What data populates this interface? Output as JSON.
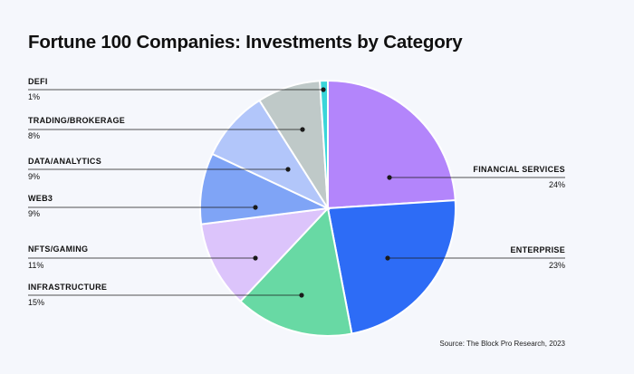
{
  "chart_data": {
    "type": "pie",
    "title": "Fortune 100 Companies: Investments by Category",
    "source": "Source: The Block Pro Research, 2023",
    "slices": [
      {
        "label": "FINANCIAL SERVICES",
        "value": 24,
        "value_label": "24%",
        "color": "#b385fb",
        "side": "right"
      },
      {
        "label": "ENTERPRISE",
        "value": 23,
        "value_label": "23%",
        "color": "#2d6cf6",
        "side": "right"
      },
      {
        "label": "INFRASTRUCTURE",
        "value": 15,
        "value_label": "15%",
        "color": "#68d9a4",
        "side": "left"
      },
      {
        "label": "NFTS/GAMING",
        "value": 11,
        "value_label": "11%",
        "color": "#dcc4fb",
        "side": "left"
      },
      {
        "label": "WEB3",
        "value": 9,
        "value_label": "9%",
        "color": "#7fa4f6",
        "side": "left"
      },
      {
        "label": "DATA/ANALYTICS",
        "value": 9,
        "value_label": "9%",
        "color": "#b2c6fa",
        "side": "left"
      },
      {
        "label": "TRADING/BROKERAGE",
        "value": 8,
        "value_label": "8%",
        "color": "#bfc9c8",
        "side": "left"
      },
      {
        "label": "DEFI",
        "value": 1,
        "value_label": "1%",
        "color": "#3ad5d9",
        "side": "left"
      }
    ]
  }
}
